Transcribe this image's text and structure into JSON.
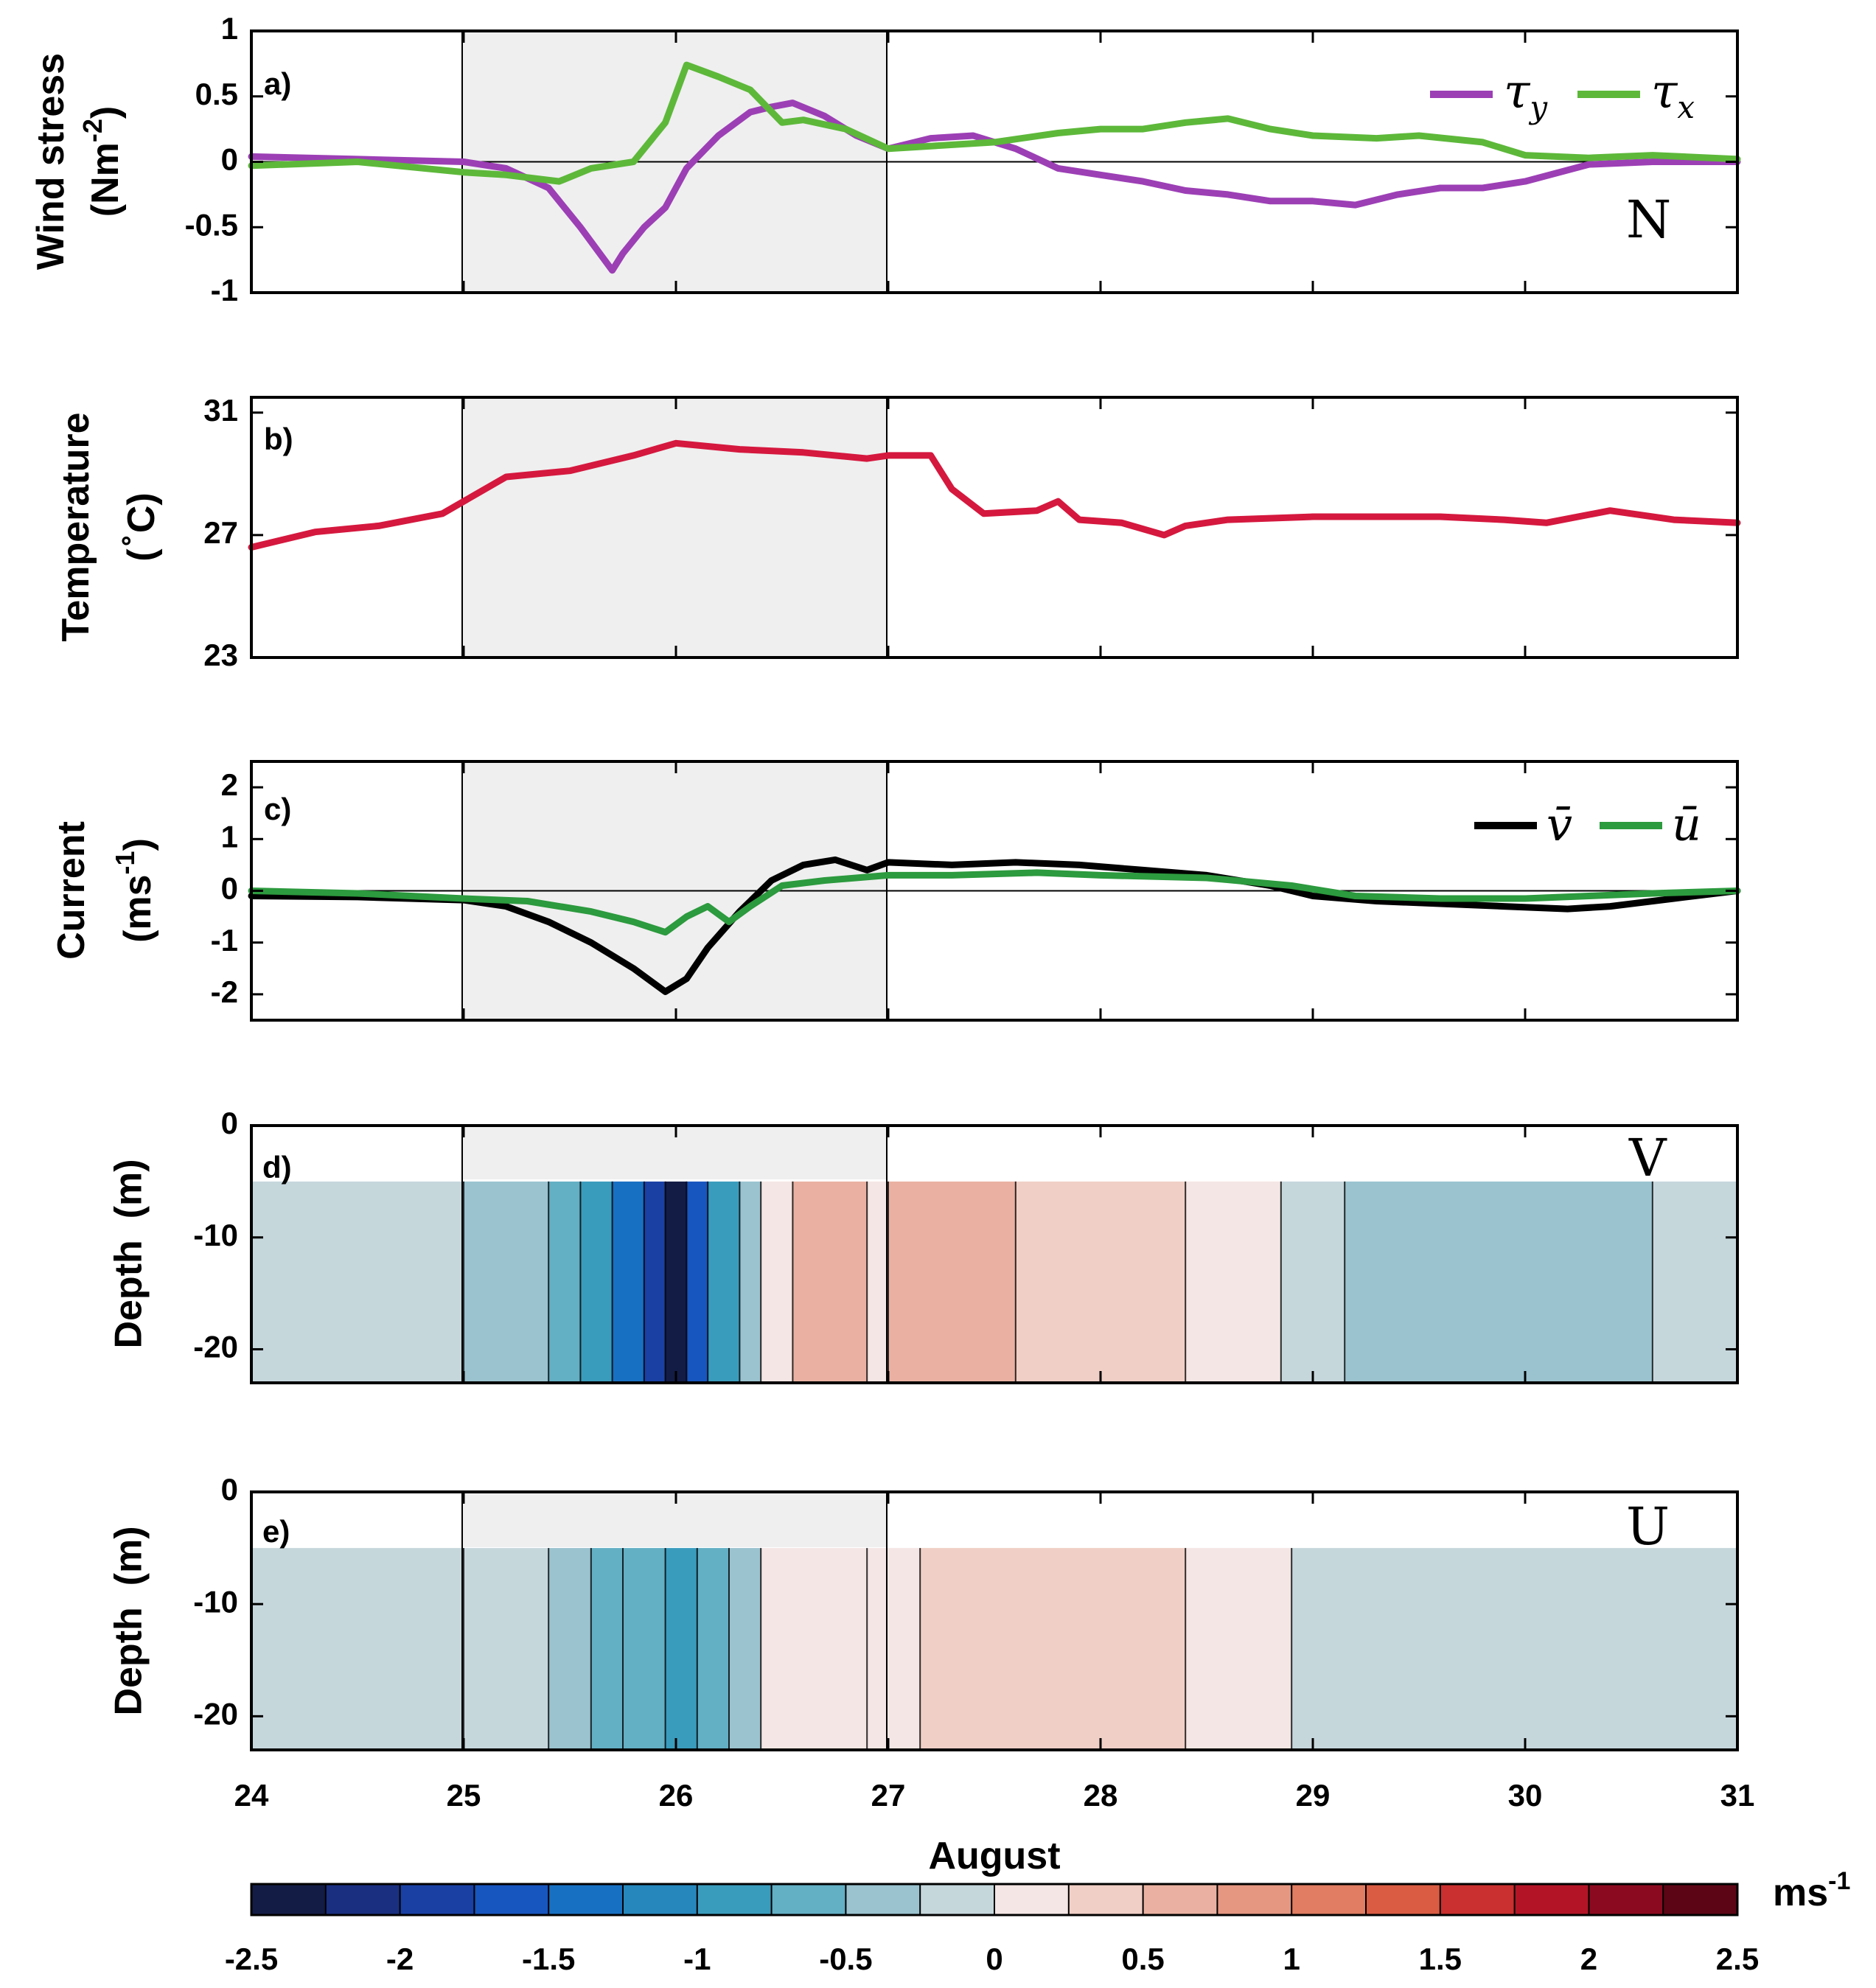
{
  "chart_data": [
    {
      "panel": "a)",
      "type": "line",
      "ylabel": [
        "Wind stress",
        "(Nm",
        "-2",
        ")"
      ],
      "ylim": [
        -1,
        1
      ],
      "yticks": [
        1,
        0.5,
        0,
        -0.5,
        -1
      ],
      "yticklabels": [
        "1",
        "0.5",
        "0",
        "-0.5",
        "-1"
      ],
      "annotation": "N",
      "legend": [
        "τy",
        "τx"
      ],
      "series": [
        {
          "name": "τy",
          "color": "#9c3fb5",
          "x": [
            24,
            24.5,
            25,
            25.2,
            25.4,
            25.55,
            25.65,
            25.7,
            25.75,
            25.85,
            25.95,
            26.05,
            26.2,
            26.35,
            26.45,
            26.55,
            26.7,
            26.85,
            27,
            27.2,
            27.4,
            27.6,
            27.8,
            28,
            28.2,
            28.4,
            28.6,
            28.8,
            29,
            29.2,
            29.4,
            29.6,
            29.8,
            30,
            30.3,
            30.6,
            31
          ],
          "y": [
            0.04,
            0.02,
            0,
            -0.05,
            -0.2,
            -0.5,
            -0.72,
            -0.83,
            -0.7,
            -0.5,
            -0.35,
            -0.05,
            0.2,
            0.38,
            0.42,
            0.45,
            0.35,
            0.2,
            0.1,
            0.18,
            0.2,
            0.1,
            -0.05,
            -0.1,
            -0.15,
            -0.22,
            -0.25,
            -0.3,
            -0.3,
            -0.33,
            -0.25,
            -0.2,
            -0.2,
            -0.15,
            -0.02,
            0,
            0
          ]
        },
        {
          "name": "τx",
          "color": "#5db83a",
          "x": [
            24,
            24.5,
            25,
            25.2,
            25.45,
            25.6,
            25.8,
            25.95,
            26.05,
            26.2,
            26.35,
            26.5,
            26.6,
            26.8,
            27,
            27.2,
            27.5,
            27.8,
            28,
            28.2,
            28.4,
            28.6,
            28.8,
            29,
            29.3,
            29.5,
            29.8,
            30,
            30.3,
            30.6,
            31
          ],
          "y": [
            -0.03,
            0,
            -0.08,
            -0.1,
            -0.15,
            -0.05,
            0,
            0.3,
            0.74,
            0.65,
            0.55,
            0.3,
            0.32,
            0.25,
            0.1,
            0.12,
            0.15,
            0.22,
            0.25,
            0.25,
            0.3,
            0.33,
            0.25,
            0.2,
            0.18,
            0.2,
            0.15,
            0.05,
            0.03,
            0.05,
            0.02
          ]
        }
      ]
    },
    {
      "panel": "b)",
      "type": "line",
      "ylabel": [
        "Temperature",
        "(",
        "∘",
        "C)"
      ],
      "ylim": [
        23,
        31.5
      ],
      "yticks": [
        31,
        27,
        23
      ],
      "yticklabels": [
        "31",
        "27",
        "23"
      ],
      "series": [
        {
          "name": "Temperature",
          "color": "#d5183e",
          "x": [
            24,
            24.3,
            24.6,
            24.9,
            25,
            25.2,
            25.5,
            25.8,
            26,
            26.3,
            26.6,
            26.9,
            27,
            27.2,
            27.3,
            27.45,
            27.7,
            27.8,
            27.9,
            28.1,
            28.3,
            28.4,
            28.6,
            29,
            29.3,
            29.6,
            29.9,
            30.1,
            30.4,
            30.7,
            31
          ],
          "y": [
            26.6,
            27.1,
            27.3,
            27.7,
            28.1,
            28.9,
            29.1,
            29.6,
            30.0,
            29.8,
            29.7,
            29.5,
            29.6,
            29.6,
            28.5,
            27.7,
            27.8,
            28.1,
            27.5,
            27.4,
            27.0,
            27.3,
            27.5,
            27.6,
            27.6,
            27.6,
            27.5,
            27.4,
            27.8,
            27.5,
            27.4
          ]
        }
      ]
    },
    {
      "panel": "c)",
      "type": "line",
      "ylabel": [
        "Current",
        "(ms",
        "-1",
        ")"
      ],
      "ylim": [
        -2.5,
        2.5
      ],
      "yticks": [
        2,
        1,
        0,
        -1,
        -2
      ],
      "yticklabels": [
        "2",
        "1",
        "0",
        "-1",
        "-2"
      ],
      "legend": [
        "v̄",
        "ū"
      ],
      "series": [
        {
          "name": "v̄",
          "color": "#000000",
          "x": [
            24,
            24.5,
            25,
            25.2,
            25.4,
            25.6,
            25.8,
            25.95,
            26.05,
            26.15,
            26.3,
            26.45,
            26.6,
            26.75,
            26.9,
            27,
            27.3,
            27.6,
            27.9,
            28.2,
            28.5,
            28.8,
            29,
            29.3,
            29.6,
            29.9,
            30.2,
            30.4,
            30.7,
            31
          ],
          "y": [
            -0.1,
            -0.12,
            -0.18,
            -0.3,
            -0.6,
            -1.0,
            -1.5,
            -1.95,
            -1.7,
            -1.1,
            -0.4,
            0.2,
            0.5,
            0.6,
            0.4,
            0.55,
            0.5,
            0.55,
            0.5,
            0.4,
            0.3,
            0.1,
            -0.1,
            -0.2,
            -0.25,
            -0.3,
            -0.35,
            -0.3,
            -0.15,
            0
          ]
        },
        {
          "name": "ū",
          "color": "#2c9a3e",
          "x": [
            24,
            24.5,
            25,
            25.3,
            25.6,
            25.8,
            25.95,
            26.05,
            26.15,
            26.25,
            26.35,
            26.5,
            26.7,
            27,
            27.3,
            27.7,
            28,
            28.5,
            28.9,
            29.2,
            29.6,
            30,
            30.3,
            30.6,
            31
          ],
          "y": [
            0,
            -0.05,
            -0.15,
            -0.2,
            -0.4,
            -0.6,
            -0.8,
            -0.5,
            -0.3,
            -0.6,
            -0.3,
            0.1,
            0.2,
            0.3,
            0.3,
            0.35,
            0.3,
            0.25,
            0.1,
            -0.1,
            -0.15,
            -0.15,
            -0.1,
            -0.05,
            0
          ]
        }
      ]
    },
    {
      "panel": "d)",
      "type": "heatmap",
      "ylabel": [
        "Depth  (m)"
      ],
      "ylim": [
        -23,
        0
      ],
      "yticks": [
        0,
        -10,
        -20
      ],
      "yticklabels": [
        "0",
        "-10",
        "-20"
      ],
      "annotation": "V",
      "top_depth": -5,
      "columns": [
        {
          "x0": 24,
          "x1": 25,
          "v": -0.1
        },
        {
          "x0": 25,
          "x1": 25.4,
          "v": -0.4
        },
        {
          "x0": 25.4,
          "x1": 25.55,
          "v": -0.6
        },
        {
          "x0": 25.55,
          "x1": 25.7,
          "v": -0.9
        },
        {
          "x0": 25.7,
          "x1": 25.85,
          "v": -1.3
        },
        {
          "x0": 25.85,
          "x1": 25.95,
          "v": -1.8
        },
        {
          "x0": 25.95,
          "x1": 26.05,
          "v": -2.4
        },
        {
          "x0": 26.05,
          "x1": 26.15,
          "v": -1.6
        },
        {
          "x0": 26.15,
          "x1": 26.3,
          "v": -1.0
        },
        {
          "x0": 26.3,
          "x1": 26.4,
          "v": -0.5
        },
        {
          "x0": 26.4,
          "x1": 26.55,
          "v": 0.2
        },
        {
          "x0": 26.55,
          "x1": 26.9,
          "v": 0.6
        },
        {
          "x0": 26.9,
          "x1": 27,
          "v": 0.2
        },
        {
          "x0": 27,
          "x1": 27.6,
          "v": 0.5
        },
        {
          "x0": 27.6,
          "x1": 28.4,
          "v": 0.35
        },
        {
          "x0": 28.4,
          "x1": 28.85,
          "v": 0.1
        },
        {
          "x0": 28.85,
          "x1": 29.15,
          "v": -0.1
        },
        {
          "x0": 29.15,
          "x1": 30.6,
          "v": -0.4
        },
        {
          "x0": 30.6,
          "x1": 31,
          "v": -0.2
        }
      ]
    },
    {
      "panel": "e)",
      "type": "heatmap",
      "ylabel": [
        "Depth  (m)"
      ],
      "ylim": [
        -23,
        0
      ],
      "yticks": [
        0,
        -10,
        -20
      ],
      "yticklabels": [
        "0",
        "-10",
        "-20"
      ],
      "annotation": "U",
      "top_depth": -5,
      "columns": [
        {
          "x0": 24,
          "x1": 25,
          "v": -0.1
        },
        {
          "x0": 25,
          "x1": 25.4,
          "v": -0.15
        },
        {
          "x0": 25.4,
          "x1": 25.6,
          "v": -0.35
        },
        {
          "x0": 25.6,
          "x1": 25.75,
          "v": -0.55
        },
        {
          "x0": 25.75,
          "x1": 25.95,
          "v": -0.75
        },
        {
          "x0": 25.95,
          "x1": 26.1,
          "v": -0.95
        },
        {
          "x0": 26.1,
          "x1": 26.25,
          "v": -0.6
        },
        {
          "x0": 26.25,
          "x1": 26.4,
          "v": -0.4
        },
        {
          "x0": 26.4,
          "x1": 26.9,
          "v": 0.1
        },
        {
          "x0": 26.9,
          "x1": 27.15,
          "v": 0.05
        },
        {
          "x0": 27.15,
          "x1": 28.4,
          "v": 0.3
        },
        {
          "x0": 28.4,
          "x1": 28.9,
          "v": 0.1
        },
        {
          "x0": 28.9,
          "x1": 31,
          "v": -0.1
        }
      ]
    }
  ],
  "x_axis": {
    "label": "August",
    "xlim": [
      24,
      31
    ],
    "ticks": [
      24,
      25,
      26,
      27,
      28,
      29,
      30,
      31
    ],
    "ticklabels": [
      "24",
      "25",
      "26",
      "27",
      "28",
      "29",
      "30",
      "31"
    ],
    "shaded_range": [
      25,
      27
    ]
  },
  "colorbar": {
    "label_base": "ms",
    "label_exp": "-1",
    "range": [
      -2.5,
      2.5
    ],
    "ticks": [
      -2.5,
      -2,
      -1.5,
      -1,
      -0.5,
      0,
      0.5,
      1,
      1.5,
      2,
      2.5
    ],
    "ticklabels": [
      "-2.5",
      "-2",
      "-1.5",
      "-1",
      "-0.5",
      "0",
      "0.5",
      "1",
      "1.5",
      "2",
      "2.5"
    ],
    "colors": [
      "#131c45",
      "#1a2f80",
      "#1a40a4",
      "#1856bf",
      "#1870c2",
      "#2687bd",
      "#3a9cbd",
      "#63afc4",
      "#9ac3cf",
      "#c6d7dc",
      "#f4e6e4",
      "#f0cfc6",
      "#eab1a2",
      "#e59782",
      "#e07d62",
      "#d95c43",
      "#c9302f",
      "#b31527",
      "#8c0a1f",
      "#5c0515"
    ]
  }
}
